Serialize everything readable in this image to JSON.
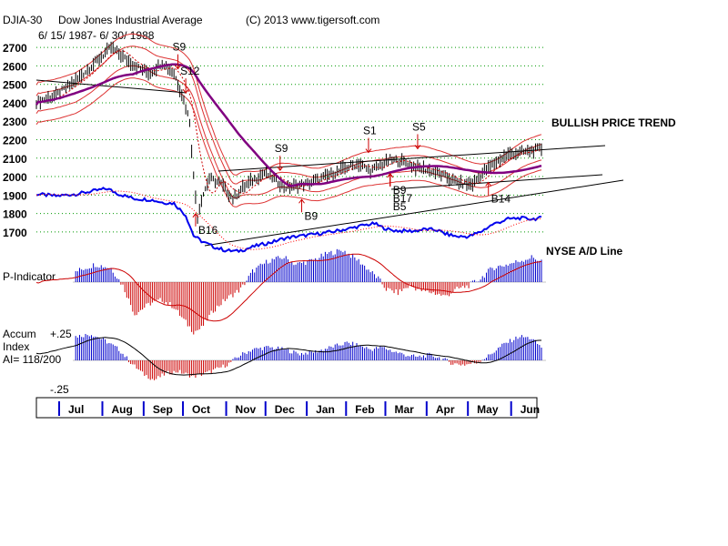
{
  "header": {
    "symbol": "DJIA-30",
    "name": "Dow Jones Industrial Average",
    "copyright": "(C) 2013 www.tigersoft.com",
    "date_range": "6/ 15/ 1987- 6/ 30/ 1988"
  },
  "colors": {
    "price_bar": "#000000",
    "ma_red": "#cc0000",
    "ma_purple": "#800080",
    "band_red": "#dd3333",
    "ad_line": "#0000ee",
    "ad_ma": "#ff0000",
    "grid": "#009900",
    "pos_hist": "#0000cc",
    "neg_hist": "#cc0000",
    "trendline": "#000000"
  },
  "chart_data": [
    {
      "type": "line",
      "name": "price",
      "title": "DJIA-30 Dow Jones Industrial Average",
      "x_unit": "trading day",
      "y_ticks": [
        2700,
        2600,
        2500,
        2400,
        2300,
        2200,
        2100,
        2000,
        1900,
        1800,
        1700
      ],
      "ylim": [
        1650,
        2760
      ],
      "months": [
        "Jul",
        "Aug",
        "Sep",
        "Oct",
        "Nov",
        "Dec",
        "Jan",
        "Feb",
        "Mar",
        "Apr",
        "May",
        "Jun"
      ],
      "month_start_day": [
        0,
        22,
        43,
        63,
        85,
        105,
        126,
        146,
        166,
        187,
        208,
        230
      ],
      "n_days": 258,
      "close_anchors": [
        [
          0,
          2405
        ],
        [
          10,
          2440
        ],
        [
          20,
          2520
        ],
        [
          30,
          2620
        ],
        [
          38,
          2700
        ],
        [
          45,
          2640
        ],
        [
          52,
          2590
        ],
        [
          58,
          2560
        ],
        [
          64,
          2620
        ],
        [
          70,
          2560
        ],
        [
          74,
          2450
        ],
        [
          78,
          2300
        ],
        [
          80,
          2000
        ],
        [
          82,
          1780
        ],
        [
          84,
          1880
        ],
        [
          88,
          1990
        ],
        [
          94,
          1960
        ],
        [
          100,
          1880
        ],
        [
          104,
          1930
        ],
        [
          110,
          1980
        ],
        [
          116,
          2020
        ],
        [
          121,
          1990
        ],
        [
          126,
          1940
        ],
        [
          132,
          1950
        ],
        [
          138,
          1960
        ],
        [
          145,
          1990
        ],
        [
          152,
          2020
        ],
        [
          158,
          2050
        ],
        [
          164,
          2070
        ],
        [
          170,
          2030
        ],
        [
          175,
          2060
        ],
        [
          180,
          2090
        ],
        [
          187,
          2080
        ],
        [
          193,
          2050
        ],
        [
          198,
          2040
        ],
        [
          204,
          2020
        ],
        [
          210,
          1990
        ],
        [
          216,
          1960
        ],
        [
          222,
          1960
        ],
        [
          228,
          2030
        ],
        [
          234,
          2080
        ],
        [
          240,
          2120
        ],
        [
          246,
          2130
        ],
        [
          252,
          2140
        ],
        [
          257,
          2150
        ]
      ],
      "annotations": [
        {
          "label": "S9",
          "day": 72,
          "type": "sell"
        },
        {
          "label": "S12",
          "day": 76,
          "type": "sell"
        },
        {
          "label": "B16",
          "day": 81,
          "type": "buy"
        },
        {
          "label": "S9",
          "day": 124,
          "type": "sell"
        },
        {
          "label": "B9",
          "day": 135,
          "type": "buy"
        },
        {
          "label": "S1",
          "day": 169,
          "type": "sell"
        },
        {
          "label": "S5",
          "day": 194,
          "type": "sell"
        },
        {
          "label": "B9",
          "day": 180,
          "type": "buy"
        },
        {
          "label": "B17",
          "day": 180,
          "type": "buy"
        },
        {
          "label": "B5",
          "day": 180,
          "type": "buy"
        },
        {
          "label": "B14",
          "day": 230,
          "type": "buy"
        }
      ],
      "annotation_text": "BULLISH PRICE TREND",
      "ad_line_label": "NYSE A/D Line"
    },
    {
      "type": "bar",
      "name": "p_indicator",
      "title": "P-Indicator",
      "anchors": [
        [
          0,
          0
        ],
        [
          10,
          5
        ],
        [
          20,
          15
        ],
        [
          30,
          25
        ],
        [
          38,
          20
        ],
        [
          44,
          -5
        ],
        [
          50,
          -45
        ],
        [
          58,
          -30
        ],
        [
          64,
          -25
        ],
        [
          70,
          -35
        ],
        [
          74,
          -50
        ],
        [
          80,
          -70
        ],
        [
          84,
          -65
        ],
        [
          90,
          -40
        ],
        [
          96,
          -25
        ],
        [
          104,
          -10
        ],
        [
          110,
          15
        ],
        [
          118,
          30
        ],
        [
          126,
          35
        ],
        [
          132,
          25
        ],
        [
          140,
          30
        ],
        [
          148,
          40
        ],
        [
          156,
          45
        ],
        [
          164,
          30
        ],
        [
          170,
          15
        ],
        [
          174,
          5
        ],
        [
          178,
          -10
        ],
        [
          184,
          -15
        ],
        [
          190,
          -5
        ],
        [
          196,
          -12
        ],
        [
          202,
          -15
        ],
        [
          208,
          -20
        ],
        [
          214,
          -10
        ],
        [
          220,
          -5
        ],
        [
          226,
          5
        ],
        [
          232,
          20
        ],
        [
          240,
          25
        ],
        [
          246,
          30
        ],
        [
          252,
          35
        ],
        [
          257,
          30
        ]
      ]
    },
    {
      "type": "bar",
      "name": "accum_index",
      "title": "Accum Index",
      "ai_value": "AI= 118/200",
      "y_ticks": [
        "+.25",
        "-.25"
      ],
      "anchors": [
        [
          0,
          0.05
        ],
        [
          10,
          0.15
        ],
        [
          20,
          0.22
        ],
        [
          28,
          0.24
        ],
        [
          35,
          0.18
        ],
        [
          42,
          0.1
        ],
        [
          48,
          -0.02
        ],
        [
          54,
          -0.12
        ],
        [
          60,
          -0.18
        ],
        [
          66,
          -0.12
        ],
        [
          72,
          -0.1
        ],
        [
          80,
          -0.15
        ],
        [
          86,
          -0.12
        ],
        [
          92,
          -0.08
        ],
        [
          98,
          -0.03
        ],
        [
          104,
          0.05
        ],
        [
          110,
          0.1
        ],
        [
          118,
          0.12
        ],
        [
          126,
          0.1
        ],
        [
          134,
          0.06
        ],
        [
          142,
          0.08
        ],
        [
          150,
          0.12
        ],
        [
          158,
          0.16
        ],
        [
          164,
          0.14
        ],
        [
          170,
          0.1
        ],
        [
          176,
          0.12
        ],
        [
          182,
          0.08
        ],
        [
          188,
          0.05
        ],
        [
          194,
          0.03
        ],
        [
          200,
          0.05
        ],
        [
          206,
          0.02
        ],
        [
          212,
          -0.03
        ],
        [
          218,
          -0.04
        ],
        [
          224,
          -0.02
        ],
        [
          230,
          0.04
        ],
        [
          238,
          0.15
        ],
        [
          246,
          0.22
        ],
        [
          252,
          0.2
        ],
        [
          257,
          0.12
        ]
      ]
    },
    {
      "type": "line",
      "name": "ad_line",
      "title": "NYSE A/D Line",
      "anchors": [
        [
          0,
          1905
        ],
        [
          10,
          1895
        ],
        [
          20,
          1905
        ],
        [
          28,
          1920
        ],
        [
          36,
          1935
        ],
        [
          42,
          1905
        ],
        [
          50,
          1880
        ],
        [
          58,
          1875
        ],
        [
          64,
          1860
        ],
        [
          70,
          1855
        ],
        [
          76,
          1790
        ],
        [
          80,
          1680
        ],
        [
          84,
          1650
        ],
        [
          90,
          1620
        ],
        [
          96,
          1600
        ],
        [
          102,
          1595
        ],
        [
          106,
          1605
        ],
        [
          112,
          1625
        ],
        [
          120,
          1645
        ],
        [
          126,
          1665
        ],
        [
          132,
          1675
        ],
        [
          140,
          1685
        ],
        [
          150,
          1700
        ],
        [
          160,
          1720
        ],
        [
          166,
          1735
        ],
        [
          172,
          1745
        ],
        [
          176,
          1725
        ],
        [
          180,
          1710
        ],
        [
          186,
          1705
        ],
        [
          192,
          1705
        ],
        [
          198,
          1715
        ],
        [
          204,
          1710
        ],
        [
          208,
          1690
        ],
        [
          214,
          1675
        ],
        [
          220,
          1675
        ],
        [
          226,
          1700
        ],
        [
          232,
          1740
        ],
        [
          240,
          1770
        ],
        [
          246,
          1775
        ],
        [
          252,
          1770
        ],
        [
          257,
          1775
        ]
      ]
    }
  ]
}
